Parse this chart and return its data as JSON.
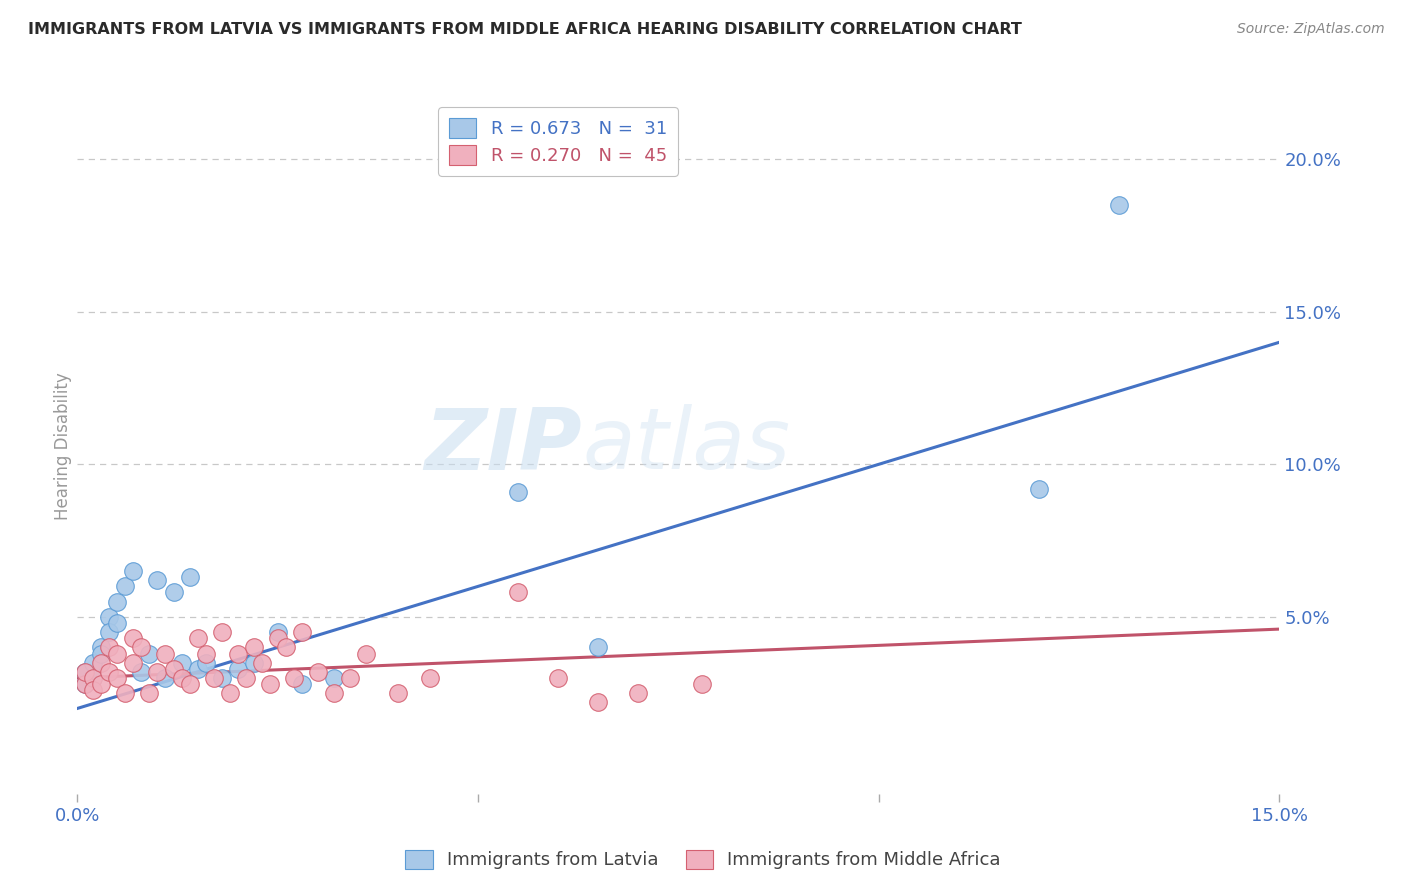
{
  "title": "IMMIGRANTS FROM LATVIA VS IMMIGRANTS FROM MIDDLE AFRICA HEARING DISABILITY CORRELATION CHART",
  "source": "Source: ZipAtlas.com",
  "ylabel": "Hearing Disability",
  "xlim": [
    0.0,
    0.15
  ],
  "ylim": [
    -0.008,
    0.22
  ],
  "y_ticks_right": [
    0.05,
    0.1,
    0.15,
    0.2
  ],
  "y_tick_labels_right": [
    "5.0%",
    "10.0%",
    "15.0%",
    "20.0%"
  ],
  "blue_R": 0.673,
  "blue_N": 31,
  "pink_R": 0.27,
  "pink_N": 45,
  "blue_color": "#a8c8e8",
  "pink_color": "#f0b0be",
  "blue_edge_color": "#5b9bd5",
  "pink_edge_color": "#d46070",
  "blue_line_color": "#4472c4",
  "pink_line_color": "#c0536a",
  "blue_trend_x": [
    0.0,
    0.15
  ],
  "blue_trend_y": [
    0.02,
    0.14
  ],
  "pink_trend_x": [
    0.0,
    0.15
  ],
  "pink_trend_y": [
    0.03,
    0.046
  ],
  "blue_scatter_x": [
    0.001,
    0.001,
    0.002,
    0.002,
    0.003,
    0.003,
    0.004,
    0.004,
    0.005,
    0.005,
    0.006,
    0.007,
    0.008,
    0.009,
    0.01,
    0.011,
    0.012,
    0.013,
    0.014,
    0.015,
    0.016,
    0.018,
    0.02,
    0.022,
    0.025,
    0.028,
    0.032,
    0.055,
    0.065,
    0.12,
    0.13
  ],
  "blue_scatter_y": [
    0.032,
    0.028,
    0.035,
    0.03,
    0.04,
    0.038,
    0.05,
    0.045,
    0.055,
    0.048,
    0.06,
    0.065,
    0.032,
    0.038,
    0.062,
    0.03,
    0.058,
    0.035,
    0.063,
    0.033,
    0.035,
    0.03,
    0.033,
    0.035,
    0.045,
    0.028,
    0.03,
    0.091,
    0.04,
    0.092,
    0.185
  ],
  "pink_scatter_x": [
    0.001,
    0.001,
    0.002,
    0.002,
    0.003,
    0.003,
    0.004,
    0.004,
    0.005,
    0.005,
    0.006,
    0.007,
    0.007,
    0.008,
    0.009,
    0.01,
    0.011,
    0.012,
    0.013,
    0.014,
    0.015,
    0.016,
    0.017,
    0.018,
    0.019,
    0.02,
    0.021,
    0.022,
    0.023,
    0.024,
    0.025,
    0.026,
    0.027,
    0.028,
    0.03,
    0.032,
    0.034,
    0.036,
    0.04,
    0.044,
    0.055,
    0.06,
    0.065,
    0.07,
    0.078
  ],
  "pink_scatter_y": [
    0.028,
    0.032,
    0.03,
    0.026,
    0.035,
    0.028,
    0.04,
    0.032,
    0.038,
    0.03,
    0.025,
    0.043,
    0.035,
    0.04,
    0.025,
    0.032,
    0.038,
    0.033,
    0.03,
    0.028,
    0.043,
    0.038,
    0.03,
    0.045,
    0.025,
    0.038,
    0.03,
    0.04,
    0.035,
    0.028,
    0.043,
    0.04,
    0.03,
    0.045,
    0.032,
    0.025,
    0.03,
    0.038,
    0.025,
    0.03,
    0.058,
    0.03,
    0.022,
    0.025,
    0.028
  ],
  "legend_label_blue": "R = 0.673   N =  31",
  "legend_label_pink": "R = 0.270   N =  45",
  "legend_label_blue_text": "Immigrants from Latvia",
  "legend_label_pink_text": "Immigrants from Middle Africa",
  "background_color": "#ffffff",
  "grid_color": "#c8c8c8",
  "title_color": "#333333",
  "axis_tick_color": "#4472c4",
  "watermark_zip": "ZIP",
  "watermark_atlas": "atlas"
}
